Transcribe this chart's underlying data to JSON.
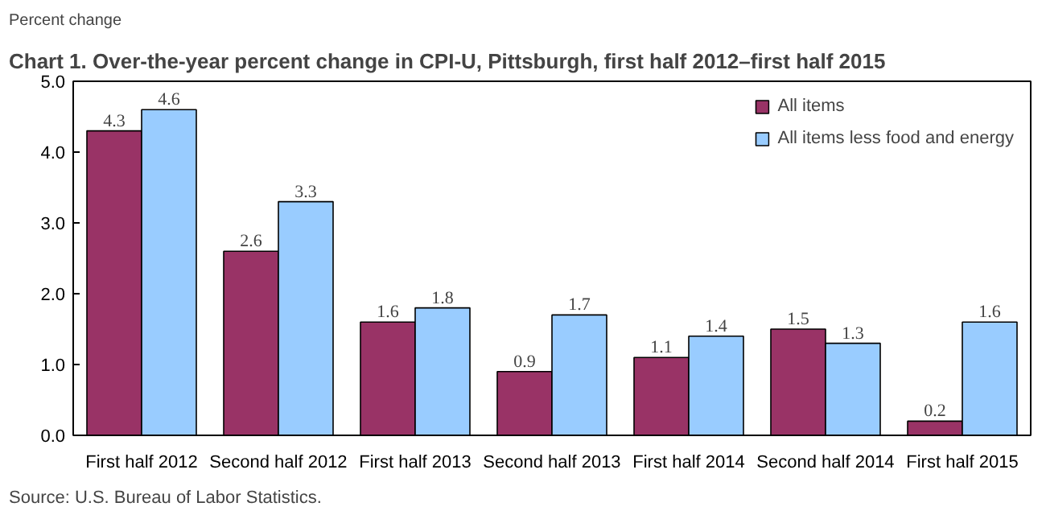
{
  "chart_data": {
    "type": "bar",
    "title": "Chart 1. Over-the-year percent change in CPI-U, Pittsburgh, first half 2012–first half 2015",
    "ylabel": "Percent change",
    "categories": [
      "First half 2012",
      "Second half 2012",
      "First half 2013",
      "Second half 2013",
      "First half 2014",
      "Second half 2014",
      "First half 2015"
    ],
    "series": [
      {
        "name": "All items",
        "color": "#993366",
        "values": [
          4.3,
          2.6,
          1.6,
          0.9,
          1.1,
          1.5,
          0.2
        ]
      },
      {
        "name": "All items less food and energy",
        "color": "#99ccff",
        "values": [
          4.6,
          3.3,
          1.8,
          1.7,
          1.4,
          1.3,
          1.6
        ]
      }
    ],
    "ylim": [
      0,
      5
    ],
    "yticks": [
      {
        "value": 0,
        "label": "0.0"
      },
      {
        "value": 1,
        "label": "1.0"
      },
      {
        "value": 2,
        "label": "2.0"
      },
      {
        "value": 3,
        "label": "3.0"
      },
      {
        "value": 4,
        "label": "4.0"
      },
      {
        "value": 5,
        "label": "5.0"
      }
    ],
    "data_labels": true,
    "legend": "top right",
    "grid": false,
    "annotations": [
      "Source: U.S. Bureau of Labor Statistics."
    ]
  }
}
